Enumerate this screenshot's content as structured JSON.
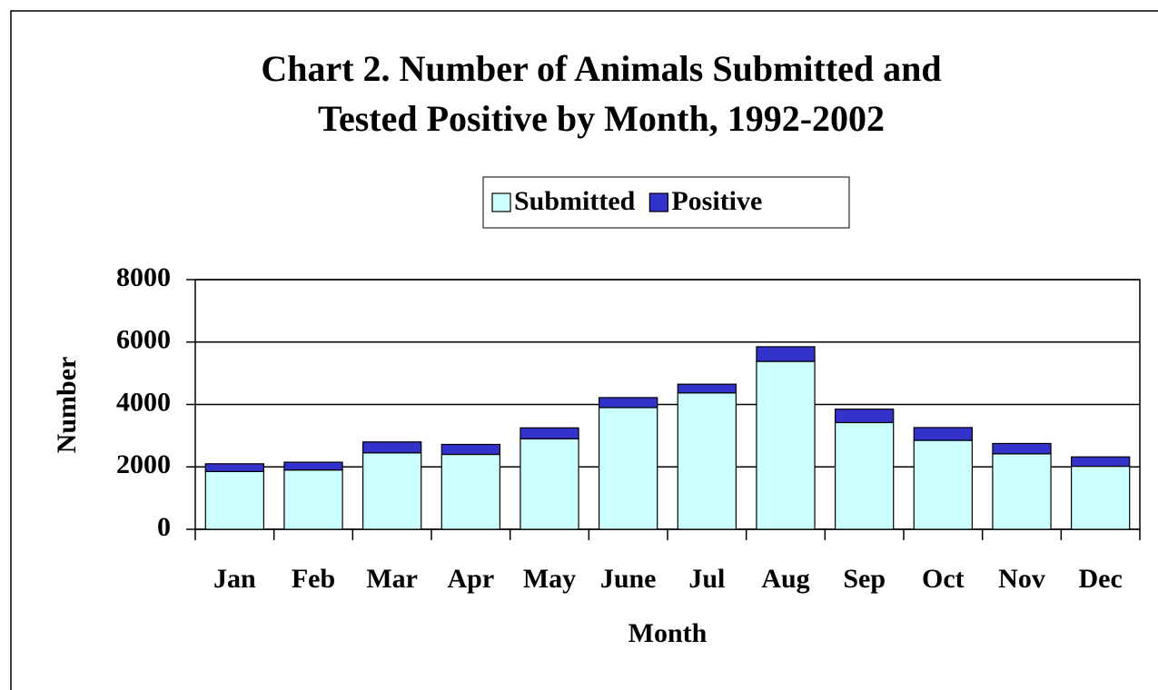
{
  "chart_data": {
    "type": "stacked-bar",
    "title": [
      "Chart 2.  Number of Animals Submitted and",
      "Tested Positive by Month, 1992-2002"
    ],
    "x_label": "Month",
    "y_label": "Number",
    "categories": [
      "Jan",
      "Feb",
      "Mar",
      "Apr",
      "May",
      "June",
      "Jul",
      "Aug",
      "Sep",
      "Oct",
      "Nov",
      "Dec"
    ],
    "series": [
      {
        "name": "Submitted",
        "color": "#ccffff",
        "values": [
          1850,
          1900,
          2450,
          2400,
          2900,
          3900,
          4370,
          5380,
          3420,
          2850,
          2420,
          2020
        ]
      },
      {
        "name": "Positive",
        "color": "#3333cc",
        "values": [
          250,
          250,
          350,
          320,
          350,
          320,
          280,
          470,
          430,
          410,
          330,
          300
        ]
      }
    ],
    "ylim": [
      0,
      8000
    ],
    "yticks": [
      0,
      2000,
      4000,
      6000,
      8000
    ],
    "grid": true,
    "legend": "top"
  }
}
